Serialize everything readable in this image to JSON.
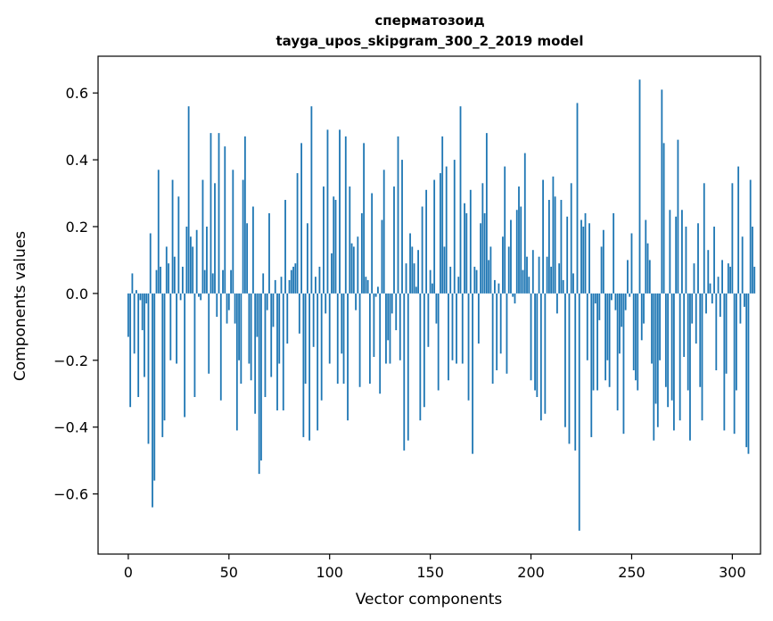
{
  "chart_data": {
    "type": "bar",
    "title": "сперматозоид",
    "subtitle": "tayga_upos_skipgram_300_2_2019 model",
    "xlabel": "Vector components",
    "ylabel": "Components values",
    "xlim": [
      -15,
      314
    ],
    "ylim": [
      -0.78,
      0.71
    ],
    "xticks": [
      0,
      50,
      100,
      150,
      200,
      250,
      300
    ],
    "xtick_labels": [
      "0",
      "50",
      "100",
      "150",
      "200",
      "250",
      "300"
    ],
    "yticks": [
      -0.6,
      -0.4,
      -0.2,
      0.0,
      0.2,
      0.4,
      0.6
    ],
    "ytick_labels": [
      "−0.6",
      "−0.4",
      "−0.2",
      "0.0",
      "0.2",
      "0.4",
      "0.6"
    ],
    "bar_color": "#1f77b4",
    "values": [
      -0.13,
      -0.34,
      0.06,
      -0.18,
      0.01,
      -0.31,
      -0.02,
      -0.11,
      -0.25,
      -0.03,
      -0.45,
      0.18,
      -0.64,
      -0.56,
      0.07,
      0.37,
      0.08,
      -0.43,
      -0.38,
      0.14,
      0.09,
      -0.2,
      0.34,
      0.11,
      -0.21,
      0.29,
      -0.02,
      0.08,
      -0.37,
      0.2,
      0.56,
      0.17,
      0.14,
      -0.31,
      0.19,
      -0.01,
      -0.02,
      0.34,
      0.07,
      0.2,
      -0.24,
      0.48,
      0.06,
      0.33,
      -0.07,
      0.48,
      -0.32,
      0.07,
      0.44,
      -0.09,
      -0.05,
      0.07,
      0.37,
      -0.09,
      -0.41,
      -0.2,
      -0.27,
      0.34,
      0.47,
      0.21,
      -0.21,
      -0.26,
      0.26,
      -0.36,
      -0.13,
      -0.54,
      -0.5,
      0.06,
      -0.31,
      -0.05,
      0.24,
      -0.25,
      -0.1,
      0.04,
      -0.35,
      -0.21,
      0.05,
      -0.35,
      0.28,
      -0.15,
      0.04,
      0.07,
      0.08,
      0.09,
      0.36,
      -0.12,
      0.45,
      -0.43,
      -0.27,
      0.21,
      -0.44,
      0.56,
      -0.16,
      0.05,
      -0.41,
      0.08,
      -0.32,
      0.32,
      -0.06,
      0.49,
      -0.21,
      0.12,
      0.29,
      0.28,
      -0.27,
      0.49,
      -0.18,
      -0.27,
      0.47,
      -0.38,
      0.32,
      0.15,
      0.14,
      -0.05,
      0.17,
      -0.28,
      0.24,
      0.45,
      0.05,
      0.04,
      -0.27,
      0.3,
      -0.19,
      -0.01,
      0.02,
      -0.3,
      0.22,
      0.37,
      -0.21,
      -0.14,
      -0.21,
      -0.06,
      0.32,
      -0.11,
      0.47,
      -0.2,
      0.4,
      -0.47,
      0.09,
      -0.44,
      0.18,
      0.14,
      0.09,
      0.02,
      0.13,
      -0.38,
      0.26,
      -0.34,
      0.31,
      -0.16,
      0.07,
      0.03,
      0.34,
      -0.09,
      -0.29,
      0.36,
      0.47,
      0.14,
      0.38,
      -0.26,
      0.08,
      -0.2,
      0.4,
      -0.21,
      0.05,
      0.56,
      -0.21,
      0.27,
      0.24,
      -0.32,
      0.31,
      -0.48,
      0.08,
      0.07,
      -0.15,
      0.21,
      0.33,
      0.24,
      0.48,
      0.1,
      0.14,
      -0.27,
      0.04,
      -0.23,
      0.03,
      -0.18,
      0.17,
      0.38,
      -0.24,
      0.14,
      0.22,
      -0.01,
      -0.03,
      0.25,
      0.32,
      0.26,
      0.07,
      0.42,
      0.11,
      0.05,
      -0.26,
      0.13,
      -0.29,
      -0.31,
      0.11,
      -0.38,
      0.34,
      -0.36,
      0.11,
      0.28,
      0.08,
      0.35,
      0.29,
      -0.06,
      0.09,
      0.28,
      0.04,
      -0.4,
      0.23,
      -0.45,
      0.33,
      0.06,
      -0.47,
      0.57,
      -0.71,
      0.22,
      0.2,
      0.24,
      -0.2,
      0.21,
      -0.43,
      -0.29,
      -0.03,
      -0.29,
      -0.08,
      0.14,
      0.19,
      -0.26,
      -0.2,
      -0.28,
      -0.02,
      0.24,
      -0.05,
      -0.35,
      -0.18,
      -0.1,
      -0.42,
      -0.05,
      0.1,
      -0.01,
      0.18,
      -0.23,
      -0.26,
      -0.29,
      0.64,
      -0.14,
      -0.09,
      0.22,
      0.15,
      0.1,
      -0.21,
      -0.44,
      -0.33,
      -0.4,
      -0.2,
      0.61,
      0.45,
      -0.28,
      -0.34,
      0.25,
      -0.32,
      -0.41,
      0.23,
      0.46,
      -0.38,
      0.25,
      -0.19,
      0.2,
      -0.29,
      -0.44,
      -0.09,
      0.09,
      -0.15,
      0.21,
      -0.28,
      -0.38,
      0.33,
      -0.06,
      0.13,
      0.03,
      -0.03,
      0.2,
      -0.23,
      0.05,
      -0.07,
      0.1,
      -0.41,
      -0.24,
      0.09,
      0.08,
      0.33,
      -0.42,
      -0.29,
      0.38,
      -0.09,
      0.17,
      -0.04,
      -0.46,
      -0.48,
      0.34,
      0.2,
      0.08
    ]
  }
}
